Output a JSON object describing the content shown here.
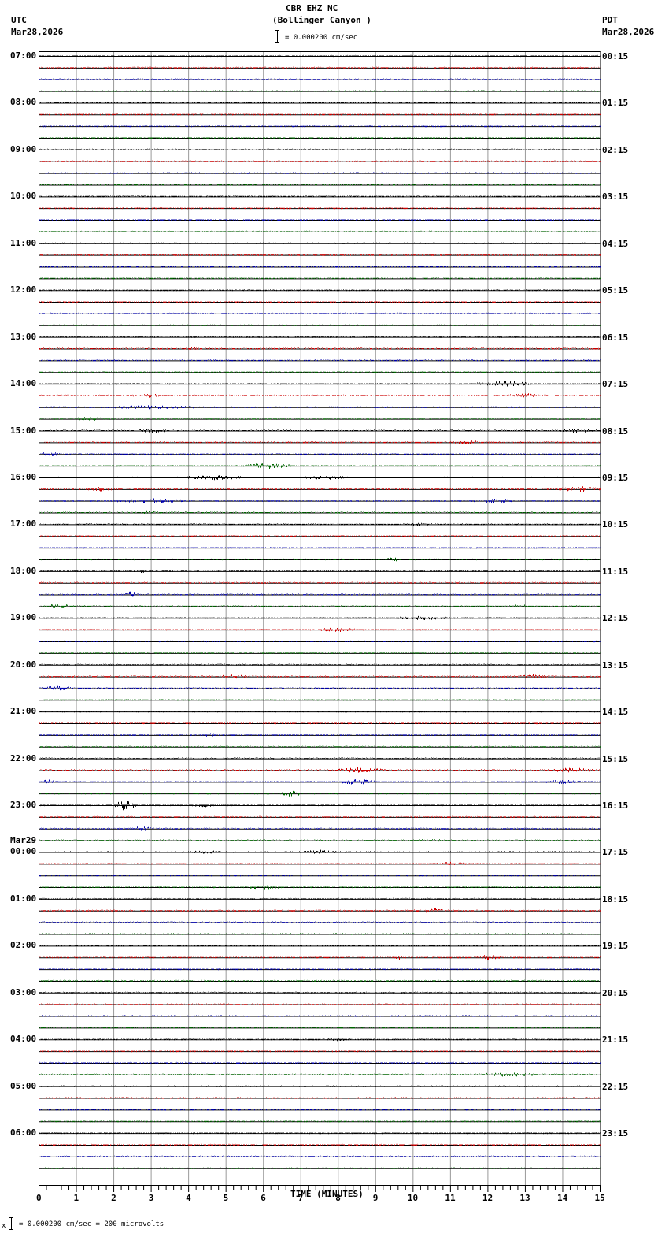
{
  "header": {
    "station": "CBR EHZ NC",
    "location": "(Bollinger Canyon )",
    "left_tz": "UTC",
    "left_date": "Mar28,2026",
    "right_tz": "PDT",
    "right_date": "Mar28,2026",
    "scale_text": "= 0.000200 cm/sec"
  },
  "footer": {
    "scale_text": "= 0.000200 cm/sec =     200 microvolts",
    "prefix": "x"
  },
  "chart_data": {
    "type": "line",
    "title": "CBR EHZ NC (Bollinger Canyon )",
    "xlabel": "TIME (MINUTES)",
    "ylabel": "",
    "x_ticks": [
      "0",
      "1",
      "2",
      "3",
      "4",
      "5",
      "6",
      "7",
      "8",
      "9",
      "10",
      "11",
      "12",
      "13",
      "14",
      "15"
    ],
    "xlim": [
      0,
      15
    ],
    "grid": true,
    "traces_per_hour": 4,
    "trace_colors": [
      "#000000",
      "#cc0000",
      "#0000aa",
      "#006600"
    ],
    "left_labels": [
      {
        "row": 0,
        "text": "07:00"
      },
      {
        "row": 4,
        "text": "08:00"
      },
      {
        "row": 8,
        "text": "09:00"
      },
      {
        "row": 12,
        "text": "10:00"
      },
      {
        "row": 16,
        "text": "11:00"
      },
      {
        "row": 20,
        "text": "12:00"
      },
      {
        "row": 24,
        "text": "13:00"
      },
      {
        "row": 28,
        "text": "14:00"
      },
      {
        "row": 32,
        "text": "15:00"
      },
      {
        "row": 36,
        "text": "16:00"
      },
      {
        "row": 40,
        "text": "17:00"
      },
      {
        "row": 44,
        "text": "18:00"
      },
      {
        "row": 48,
        "text": "19:00"
      },
      {
        "row": 52,
        "text": "20:00"
      },
      {
        "row": 56,
        "text": "21:00"
      },
      {
        "row": 60,
        "text": "22:00"
      },
      {
        "row": 64,
        "text": "23:00"
      },
      {
        "row": 68,
        "text": "00:00",
        "date": "Mar29"
      },
      {
        "row": 72,
        "text": "01:00"
      },
      {
        "row": 76,
        "text": "02:00"
      },
      {
        "row": 80,
        "text": "03:00"
      },
      {
        "row": 84,
        "text": "04:00"
      },
      {
        "row": 88,
        "text": "05:00"
      },
      {
        "row": 92,
        "text": "06:00"
      }
    ],
    "right_labels": [
      "00:15",
      "01:15",
      "02:15",
      "03:15",
      "04:15",
      "05:15",
      "06:15",
      "07:15",
      "08:15",
      "09:15",
      "10:15",
      "11:15",
      "12:15",
      "13:15",
      "14:15",
      "15:15",
      "16:15",
      "17:15",
      "18:15",
      "19:15",
      "20:15",
      "21:15",
      "22:15",
      "23:15"
    ],
    "total_rows": 96,
    "bursts": [
      {
        "row": 25,
        "start": 4.0,
        "end": 4.2,
        "amp": 4
      },
      {
        "row": 28,
        "start": 11.7,
        "end": 13.2,
        "amp": 4
      },
      {
        "row": 29,
        "start": 2.5,
        "end": 3.3,
        "amp": 3
      },
      {
        "row": 29,
        "start": 12.5,
        "end": 13.5,
        "amp": 3
      },
      {
        "row": 30,
        "start": 1.5,
        "end": 4.5,
        "amp": 2.5
      },
      {
        "row": 31,
        "start": 0.8,
        "end": 1.8,
        "amp": 3
      },
      {
        "row": 32,
        "start": 2.6,
        "end": 3.5,
        "amp": 3
      },
      {
        "row": 32,
        "start": 13.8,
        "end": 15,
        "amp": 3
      },
      {
        "row": 33,
        "start": 11.0,
        "end": 12.0,
        "amp": 2.5
      },
      {
        "row": 34,
        "start": 0,
        "end": 0.6,
        "amp": 3
      },
      {
        "row": 35,
        "start": 5.5,
        "end": 6.8,
        "amp": 4
      },
      {
        "row": 36,
        "start": 3.8,
        "end": 5.5,
        "amp": 3.5
      },
      {
        "row": 36,
        "start": 7.0,
        "end": 8.2,
        "amp": 3.5
      },
      {
        "row": 37,
        "start": 1.2,
        "end": 2.0,
        "amp": 3
      },
      {
        "row": 37,
        "start": 13.9,
        "end": 15,
        "amp": 4
      },
      {
        "row": 38,
        "start": 2.0,
        "end": 4.0,
        "amp": 3.5
      },
      {
        "row": 38,
        "start": 11.5,
        "end": 12.8,
        "amp": 3.5
      },
      {
        "row": 39,
        "start": 2.6,
        "end": 3.2,
        "amp": 3
      },
      {
        "row": 40,
        "start": 9.8,
        "end": 10.6,
        "amp": 2.5
      },
      {
        "row": 41,
        "start": 10.2,
        "end": 10.8,
        "amp": 2.5
      },
      {
        "row": 43,
        "start": 9.0,
        "end": 10.0,
        "amp": 2.5
      },
      {
        "row": 44,
        "start": 2.5,
        "end": 3.0,
        "amp": 2.5
      },
      {
        "row": 46,
        "start": 2.3,
        "end": 2.6,
        "amp": 5
      },
      {
        "row": 47,
        "start": 0,
        "end": 1.0,
        "amp": 3
      },
      {
        "row": 47,
        "start": 12.5,
        "end": 13.2,
        "amp": 2.5
      },
      {
        "row": 48,
        "start": 9.5,
        "end": 11.0,
        "amp": 3
      },
      {
        "row": 49,
        "start": 7.5,
        "end": 8.6,
        "amp": 3.5
      },
      {
        "row": 53,
        "start": 4.8,
        "end": 5.6,
        "amp": 3
      },
      {
        "row": 53,
        "start": 12.8,
        "end": 13.6,
        "amp": 3
      },
      {
        "row": 54,
        "start": 0,
        "end": 1.0,
        "amp": 3
      },
      {
        "row": 58,
        "start": 4.2,
        "end": 5.0,
        "amp": 2.5
      },
      {
        "row": 61,
        "start": 8.0,
        "end": 9.2,
        "amp": 4
      },
      {
        "row": 61,
        "start": 13.6,
        "end": 15,
        "amp": 3.5
      },
      {
        "row": 62,
        "start": 0,
        "end": 0.4,
        "amp": 4
      },
      {
        "row": 62,
        "start": 8.0,
        "end": 9.0,
        "amp": 4
      },
      {
        "row": 62,
        "start": 13.5,
        "end": 14.5,
        "amp": 3
      },
      {
        "row": 63,
        "start": 6.5,
        "end": 7.0,
        "amp": 5
      },
      {
        "row": 64,
        "start": 2.0,
        "end": 2.6,
        "amp": 7
      },
      {
        "row": 64,
        "start": 4.0,
        "end": 5.0,
        "amp": 2.5
      },
      {
        "row": 66,
        "start": 2.5,
        "end": 3.0,
        "amp": 4
      },
      {
        "row": 67,
        "start": 10.0,
        "end": 11.0,
        "amp": 2
      },
      {
        "row": 68,
        "start": 4.0,
        "end": 5.0,
        "amp": 2.5
      },
      {
        "row": 68,
        "start": 7.0,
        "end": 8.0,
        "amp": 3
      },
      {
        "row": 69,
        "start": 10.5,
        "end": 11.5,
        "amp": 2.5
      },
      {
        "row": 71,
        "start": 5.5,
        "end": 6.5,
        "amp": 3
      },
      {
        "row": 73,
        "start": 10.0,
        "end": 11.0,
        "amp": 3.5
      },
      {
        "row": 77,
        "start": 9.5,
        "end": 9.7,
        "amp": 4
      },
      {
        "row": 77,
        "start": 11.5,
        "end": 12.5,
        "amp": 3.5
      },
      {
        "row": 84,
        "start": 7.5,
        "end": 8.5,
        "amp": 2
      },
      {
        "row": 87,
        "start": 11.5,
        "end": 13.5,
        "amp": 3
      }
    ]
  }
}
